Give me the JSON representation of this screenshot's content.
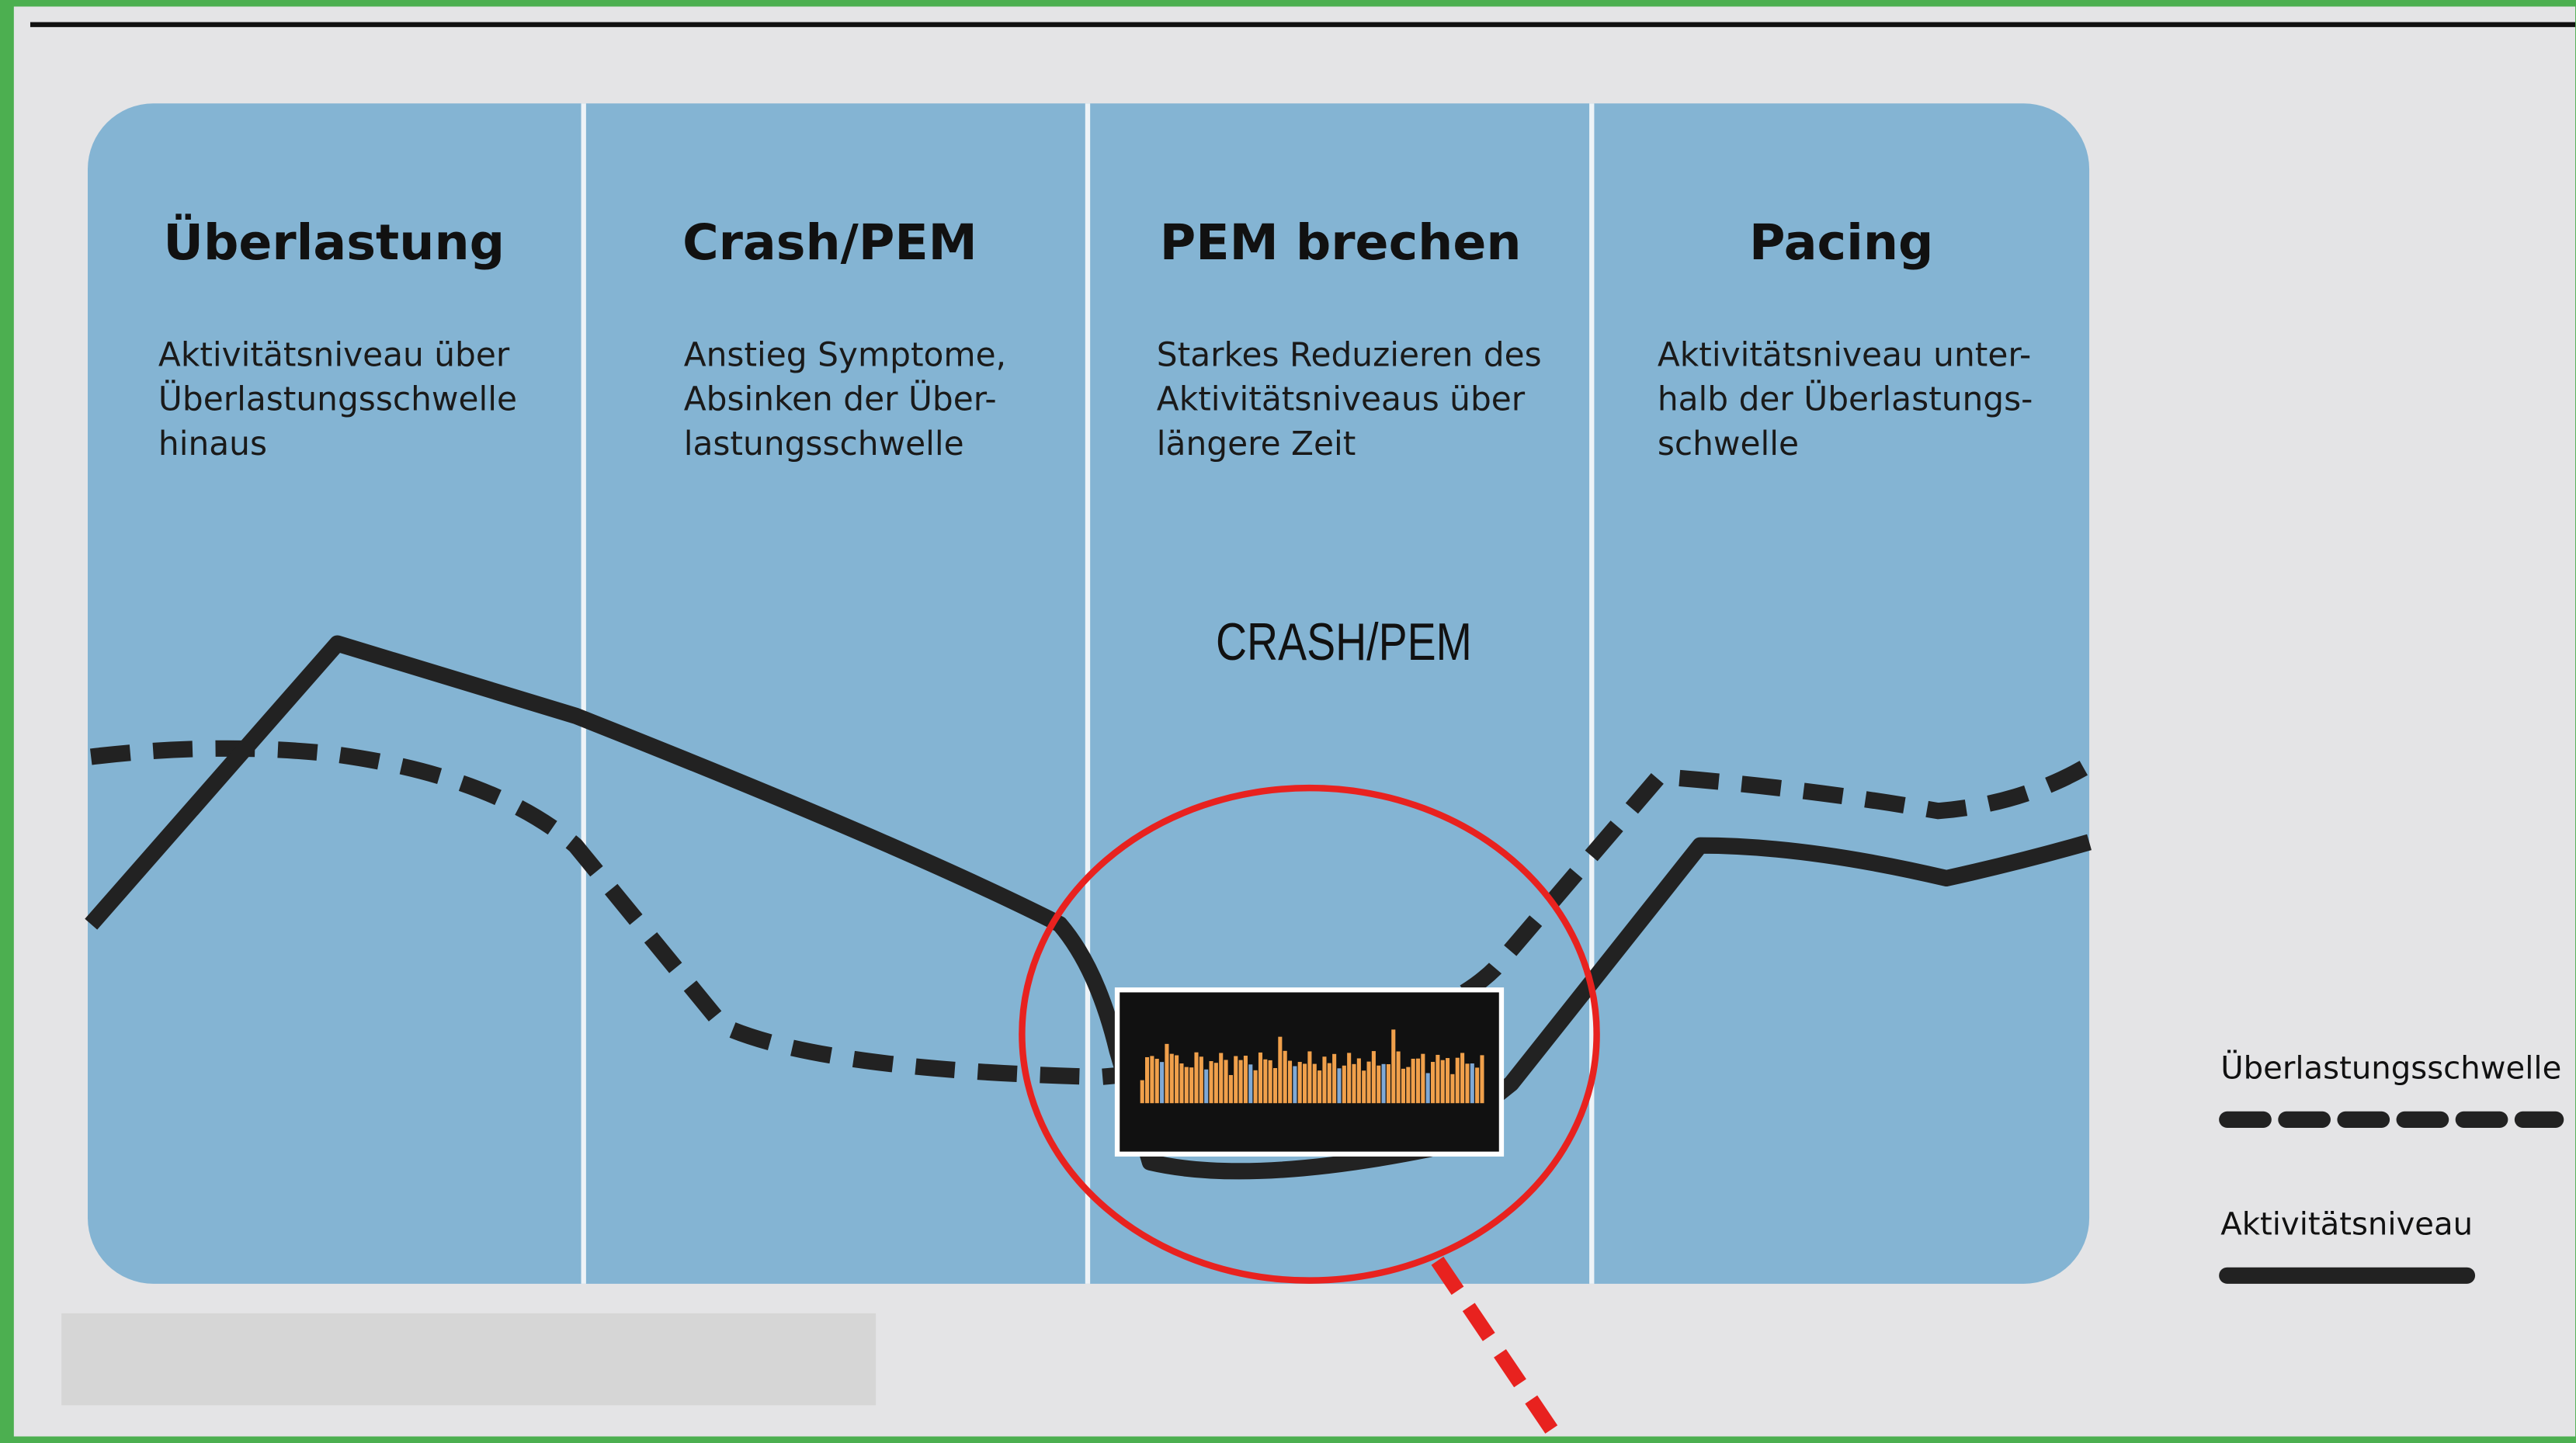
{
  "panels": [
    {
      "title": "Überlastung",
      "description": [
        "Aktivitätsniveau über",
        "Überlastungsschwelle",
        "hinaus"
      ]
    },
    {
      "title": "Crash/PEM",
      "description": [
        "Anstieg Symptome,",
        "Absinken der Über-",
        "lastungsschwelle"
      ]
    },
    {
      "title": "PEM brechen",
      "description": [
        "Starkes Reduzieren des",
        "Aktivitätsniveaus über",
        "längere Zeit"
      ]
    },
    {
      "title": "Pacing",
      "description": [
        "Aktivitätsniveau unter-",
        "halb der Überlastungs-",
        "schwelle"
      ]
    }
  ],
  "annotation": "CRASH/PEM",
  "legend": [
    "Überlastungsschwelle",
    "Aktivitätsniveau"
  ]
}
